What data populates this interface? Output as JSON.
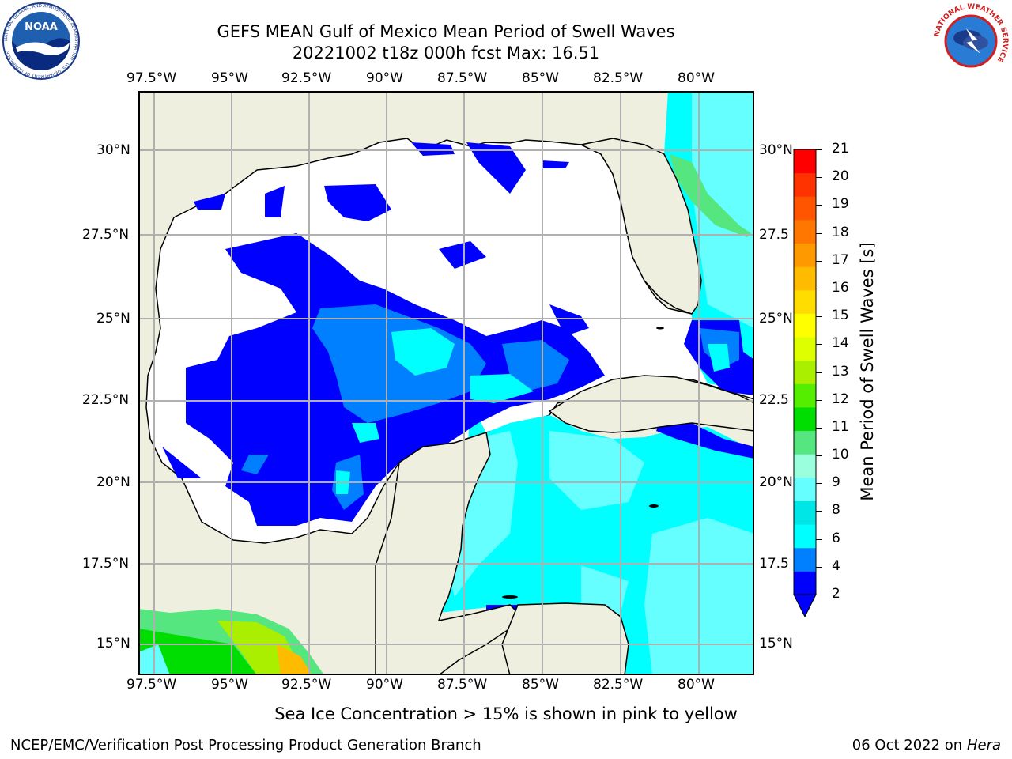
{
  "header": {
    "title_line1": "GEFS MEAN Gulf of Mexico Mean Period of Swell Waves",
    "title_line2": "20221002 t18z 000h fcst   Max: 16.51"
  },
  "logos": {
    "noaa_text": "NOAA",
    "noaa_ring_text": "NATIONAL OCEANIC AND ATMOSPHERIC ADMINISTRATION · U.S. DEPARTMENT OF COMMERCE",
    "nws_ring_text": "NATIONAL WEATHER SERVICE"
  },
  "map": {
    "lon_labels": [
      "97.5°W",
      "95°W",
      "92.5°W",
      "90°W",
      "87.5°W",
      "85°W",
      "82.5°W",
      "80°W"
    ],
    "lat_labels_left": [
      "30°N",
      "27.5°N",
      "25°N",
      "22.5°N",
      "20°N",
      "17.5°N",
      "15°N"
    ],
    "lat_labels_right": [
      "30°N",
      "27.5",
      "25°N",
      "22.5",
      "20°N",
      "17.5",
      "15°N"
    ],
    "colors": {
      "land": "#efefdf",
      "grid": "#b0b0b0",
      "coast": "#000000"
    }
  },
  "colorbar": {
    "label": "Mean Period of Swell Waves [s]",
    "ticks": [
      "2",
      "4",
      "6",
      "8",
      "9",
      "10",
      "11",
      "12",
      "13",
      "14",
      "15",
      "16",
      "17",
      "18",
      "19",
      "20",
      "21"
    ],
    "colors": [
      "#0000ff",
      "#0080ff",
      "#00ffff",
      "#00e6e6",
      "#66ffff",
      "#99ffdd",
      "#55e680",
      "#00dd00",
      "#55ee00",
      "#aaee00",
      "#ddff00",
      "#ffff00",
      "#ffdd00",
      "#ffbb00",
      "#ff9900",
      "#ff7700",
      "#ff5500",
      "#ff3300",
      "#ff0000"
    ]
  },
  "footer": {
    "note": "Sea Ice Concentration > 15% is shown in pink to yellow",
    "left": "NCEP/EMC/Verification Post Processing Product Generation Branch",
    "date": "06 Oct 2022 on",
    "host": "Hera"
  }
}
